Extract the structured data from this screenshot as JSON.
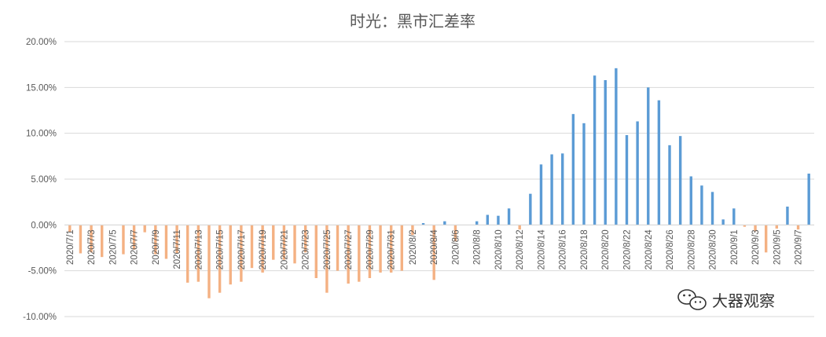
{
  "chart_data": {
    "type": "bar",
    "title": "时光：黑市汇差率",
    "xlabel": "",
    "ylabel": "",
    "ylim": [
      -0.1,
      0.2
    ],
    "yticks": [
      "20.00%",
      "15.00%",
      "10.00%",
      "5.00%",
      "0.00%",
      "-5.00%",
      "-10.00%"
    ],
    "grid": true,
    "legend": "none",
    "positive_color": "#5b9bd5",
    "negative_color": "#f4b183",
    "categories": [
      "2020/7/1",
      "2020/7/2",
      "2020/7/3",
      "2020/7/4",
      "2020/7/5",
      "2020/7/6",
      "2020/7/7",
      "2020/7/8",
      "2020/7/9",
      "2020/7/10",
      "2020/7/11",
      "2020/7/12",
      "2020/7/13",
      "2020/7/14",
      "2020/7/15",
      "2020/7/16",
      "2020/7/17",
      "2020/7/18",
      "2020/7/19",
      "2020/7/20",
      "2020/7/21",
      "2020/7/22",
      "2020/7/23",
      "2020/7/24",
      "2020/7/25",
      "2020/7/26",
      "2020/7/27",
      "2020/7/28",
      "2020/7/29",
      "2020/7/30",
      "2020/7/31",
      "2020/8/1",
      "2020/8/2",
      "2020/8/3",
      "2020/8/4",
      "2020/8/5",
      "2020/8/6",
      "2020/8/7",
      "2020/8/8",
      "2020/8/9",
      "2020/8/10",
      "2020/8/11",
      "2020/8/12",
      "2020/8/13",
      "2020/8/14",
      "2020/8/15",
      "2020/8/16",
      "2020/8/17",
      "2020/8/18",
      "2020/8/19",
      "2020/8/20",
      "2020/8/21",
      "2020/8/22",
      "2020/8/23",
      "2020/8/24",
      "2020/8/25",
      "2020/8/26",
      "2020/8/27",
      "2020/8/28",
      "2020/8/29",
      "2020/8/30",
      "2020/8/31",
      "2020/9/1",
      "2020/9/2",
      "2020/9/3",
      "2020/9/4",
      "2020/9/5",
      "2020/9/6",
      "2020/9/7",
      "2020/9/8"
    ],
    "xticklabels": [
      "2020/7/1",
      "2020/7/3",
      "2020/7/5",
      "2020/7/7",
      "2020/7/9",
      "2020/7/11",
      "2020/7/13",
      "2020/7/15",
      "2020/7/17",
      "2020/7/19",
      "2020/7/21",
      "2020/7/23",
      "2020/7/25",
      "2020/7/27",
      "2020/7/29",
      "2020/7/31",
      "2020/8/2",
      "2020/8/4",
      "2020/8/6",
      "2020/8/8",
      "2020/8/10",
      "2020/8/12",
      "2020/8/14",
      "2020/8/16",
      "2020/8/18",
      "2020/8/20",
      "2020/8/22",
      "2020/8/24",
      "2020/8/26",
      "2020/8/28",
      "2020/8/30",
      "2020/9/1",
      "2020/9/3",
      "2020/9/5",
      "2020/9/7"
    ],
    "values": [
      -0.008,
      -0.031,
      -0.03,
      -0.035,
      0.0,
      -0.032,
      -0.027,
      -0.008,
      -0.032,
      -0.037,
      -0.031,
      -0.063,
      -0.062,
      -0.08,
      -0.074,
      -0.065,
      -0.062,
      -0.047,
      -0.052,
      -0.038,
      -0.038,
      -0.042,
      -0.03,
      -0.058,
      -0.074,
      -0.05,
      -0.064,
      -0.062,
      -0.058,
      -0.052,
      -0.052,
      -0.05,
      -0.011,
      0.002,
      -0.06,
      0.004,
      -0.018,
      0.0,
      0.004,
      0.011,
      0.01,
      0.018,
      -0.005,
      0.034,
      0.066,
      0.077,
      0.078,
      0.121,
      0.111,
      0.163,
      0.158,
      0.171,
      0.098,
      0.113,
      0.15,
      0.136,
      0.087,
      0.097,
      0.053,
      0.043,
      0.036,
      0.006,
      0.018,
      -0.002,
      -0.007,
      -0.03,
      -0.004,
      0.02,
      -0.005,
      0.056
    ]
  },
  "watermark": {
    "icon": "wechat-icon",
    "text": "大器观察"
  }
}
